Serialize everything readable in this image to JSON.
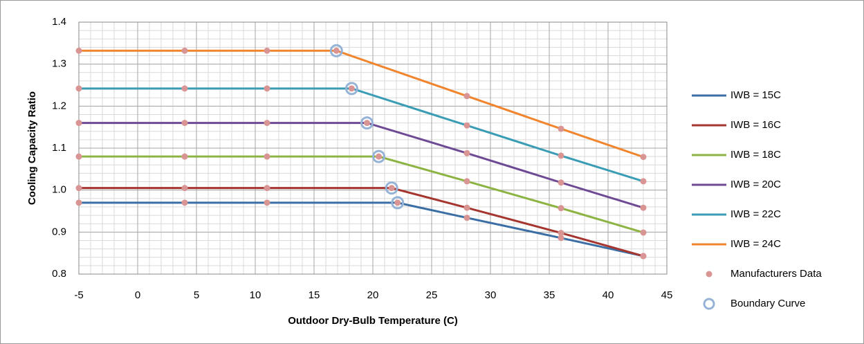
{
  "chart_data": {
    "type": "line",
    "xlabel": "Outdoor Dry-Bulb Temperature (C)",
    "ylabel": "Cooling Capacity Ratio",
    "xlim": [
      -5,
      45
    ],
    "xticks": [
      -5,
      0,
      5,
      10,
      15,
      20,
      25,
      30,
      35,
      40,
      45
    ],
    "ylim": [
      0.8,
      1.4
    ],
    "yticks": [
      0.8,
      0.9,
      {
        "value": 1,
        "label": "1.0"
      },
      1.1,
      1.2,
      1.3,
      1.4
    ],
    "grid": true,
    "minor_grid": {
      "x": 1,
      "y": 0.02
    },
    "legend": "right",
    "series": [
      {
        "name": "IWB = 15C",
        "color": "#3a6ea5",
        "style": "line",
        "x": [
          -5,
          4,
          11,
          22.1,
          28,
          36,
          43
        ],
        "values": [
          0.97,
          0.97,
          0.97,
          0.97,
          0.934,
          0.886,
          0.843
        ]
      },
      {
        "name": "IWB = 16C",
        "color": "#a5362f",
        "style": "line",
        "x": [
          -5,
          4,
          11,
          21.6,
          28,
          36,
          43
        ],
        "values": [
          1.005,
          1.005,
          1.005,
          1.005,
          0.958,
          0.898,
          0.843
        ]
      },
      {
        "name": "IWB = 18C",
        "color": "#8db443",
        "style": "line",
        "x": [
          -5,
          4,
          11,
          20.5,
          28,
          36,
          43
        ],
        "values": [
          1.08,
          1.08,
          1.08,
          1.08,
          1.021,
          0.957,
          0.899
        ]
      },
      {
        "name": "IWB = 20C",
        "color": "#6f4a94",
        "style": "line",
        "x": [
          -5,
          4,
          11,
          19.5,
          28,
          36,
          43
        ],
        "values": [
          1.16,
          1.16,
          1.16,
          1.16,
          1.088,
          1.018,
          0.958
        ]
      },
      {
        "name": "IWB = 22C",
        "color": "#3a9db5",
        "style": "line",
        "x": [
          -5,
          4,
          11,
          18.2,
          28,
          36,
          43
        ],
        "values": [
          1.242,
          1.242,
          1.242,
          1.242,
          1.154,
          1.082,
          1.021
        ]
      },
      {
        "name": "IWB = 24C",
        "color": "#f0852e",
        "style": "line",
        "x": [
          -5,
          4,
          11,
          16.9,
          28,
          36,
          43
        ],
        "values": [
          1.332,
          1.332,
          1.332,
          1.332,
          1.224,
          1.146,
          1.079
        ]
      },
      {
        "name": "Manufacturers Data",
        "color": "#d99594",
        "style": "dot",
        "x": [
          -5,
          4,
          11,
          22.1,
          28,
          36,
          43,
          -5,
          4,
          11,
          21.6,
          28,
          36,
          43,
          -5,
          4,
          11,
          20.5,
          28,
          36,
          43,
          -5,
          4,
          11,
          19.5,
          28,
          36,
          43,
          -5,
          4,
          11,
          18.2,
          28,
          36,
          43,
          -5,
          4,
          11,
          16.9,
          28,
          36,
          43
        ],
        "values": [
          0.97,
          0.97,
          0.97,
          0.97,
          0.934,
          0.886,
          0.843,
          1.005,
          1.005,
          1.005,
          1.005,
          0.958,
          0.898,
          0.843,
          1.08,
          1.08,
          1.08,
          1.08,
          1.021,
          0.957,
          0.899,
          1.16,
          1.16,
          1.16,
          1.16,
          1.088,
          1.018,
          0.958,
          1.242,
          1.242,
          1.242,
          1.242,
          1.154,
          1.082,
          1.021,
          1.332,
          1.332,
          1.332,
          1.332,
          1.224,
          1.146,
          1.079
        ]
      },
      {
        "name": "Boundary Curve",
        "color": "#95b3d7",
        "style": "circle",
        "x": [
          22.1,
          21.6,
          20.5,
          19.5,
          18.2,
          16.9
        ],
        "values": [
          0.97,
          1.005,
          1.08,
          1.16,
          1.242,
          1.332
        ]
      }
    ]
  }
}
